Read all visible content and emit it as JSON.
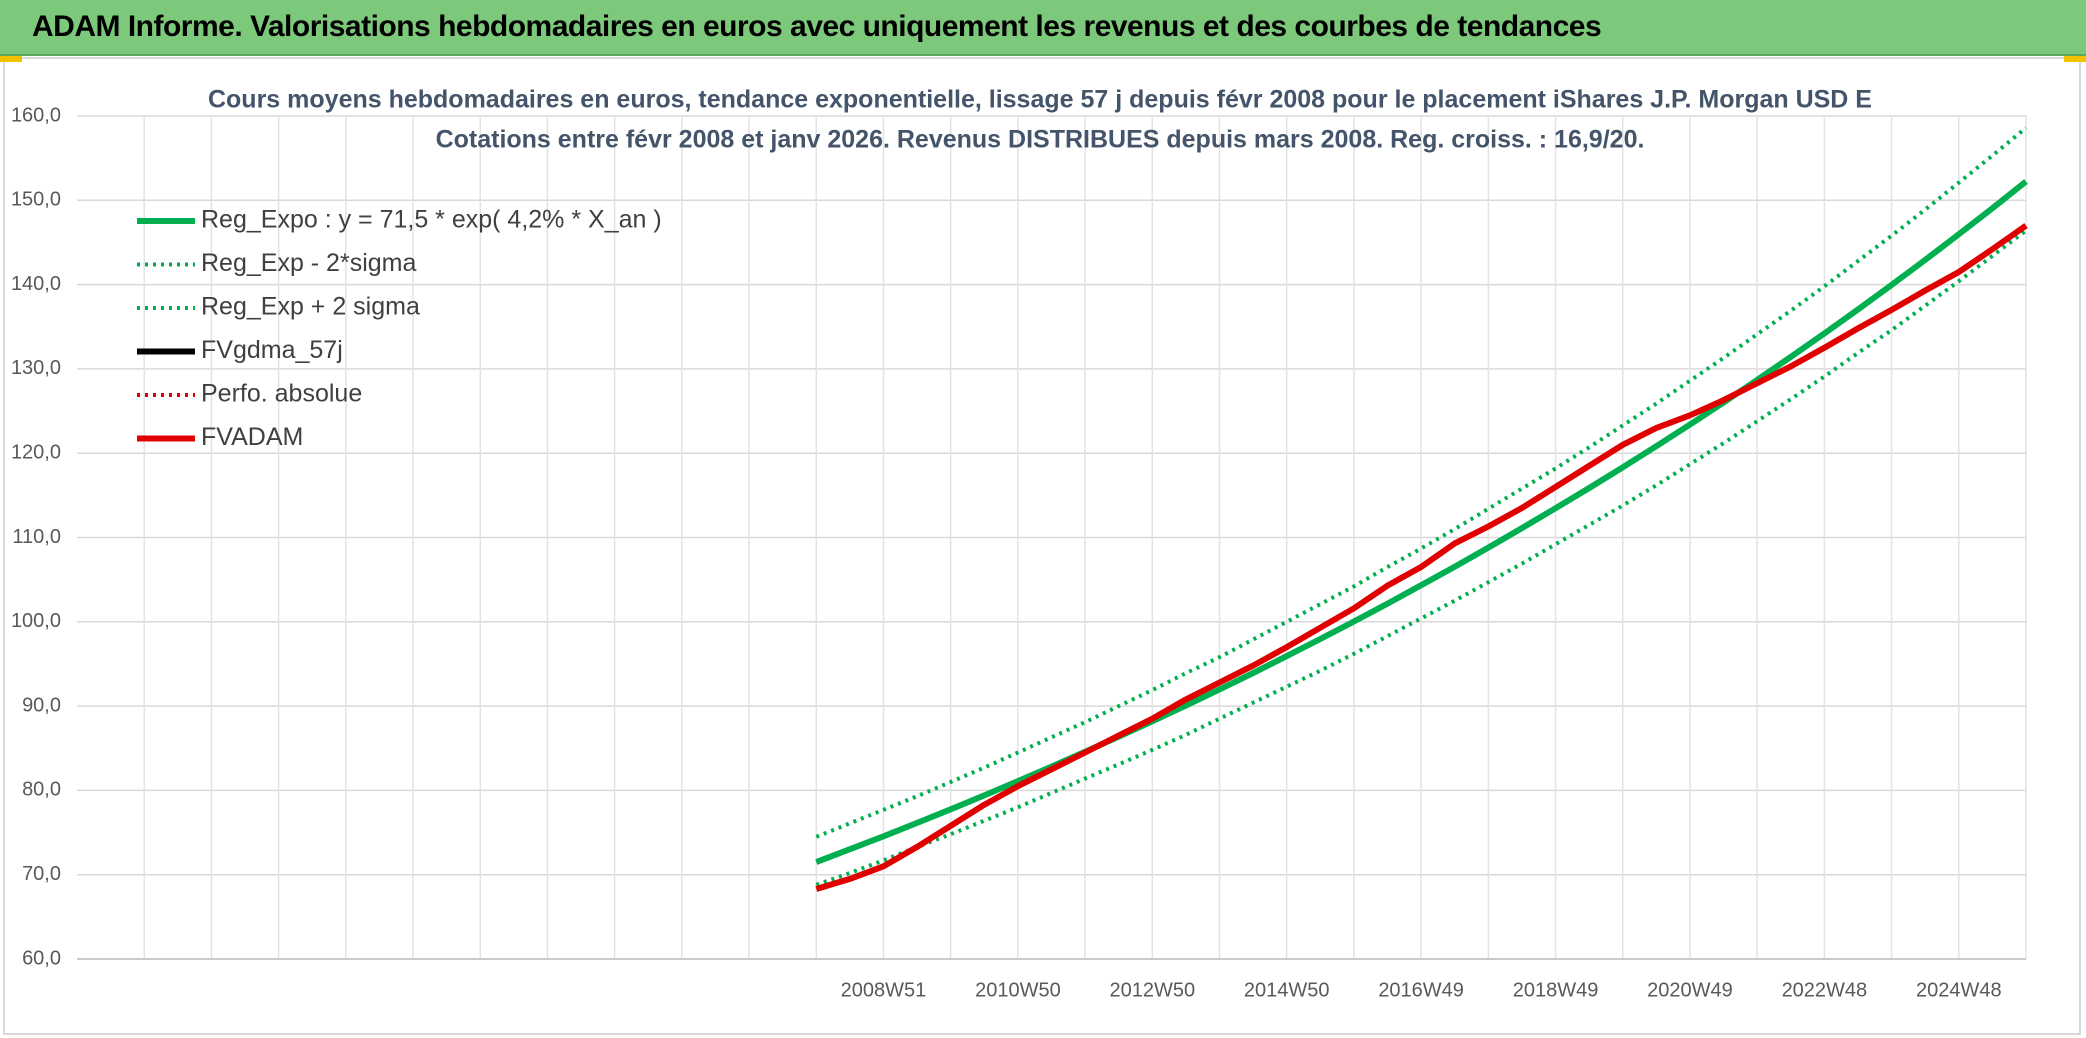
{
  "header": {
    "title": "ADAM Informe. Valorisations hebdomadaires en euros avec uniquement les revenus et des courbes de tendances"
  },
  "chart_data": {
    "type": "line",
    "title": "Cours moyens hebdomadaires en euros, tendance exponentielle, lissage 57 j depuis févr 2008 pour le placement iShares J.P. Morgan USD E",
    "subtitle": "Cotations entre févr 2008 et janv 2026. Revenus DISTRIBUES depuis mars 2008. Reg. croiss. : 16,9/20.",
    "categories": [
      null,
      null,
      null,
      null,
      null,
      null,
      null,
      null,
      null,
      null,
      null,
      null,
      null,
      null,
      null,
      null,
      null,
      null,
      null,
      null,
      null,
      null,
      null,
      null,
      "2008W51",
      null,
      null,
      null,
      "2010W50",
      null,
      null,
      null,
      "2012W50",
      null,
      null,
      null,
      "2014W50",
      null,
      null,
      null,
      "2016W49",
      null,
      null,
      null,
      "2018W49",
      null,
      null,
      null,
      "2020W49",
      null,
      null,
      null,
      "2022W48",
      null,
      null,
      null,
      "2024W48",
      null,
      null
    ],
    "ylim": [
      60,
      160
    ],
    "yticks": [
      {
        "value": 60,
        "label": "60,0"
      },
      {
        "value": 70,
        "label": "70,0"
      },
      {
        "value": 80,
        "label": "80,0"
      },
      {
        "value": 90,
        "label": "90,0"
      },
      {
        "value": 100,
        "label": "100,0"
      },
      {
        "value": 110,
        "label": "110,0"
      },
      {
        "value": 120,
        "label": "120,0"
      },
      {
        "value": 130,
        "label": "130,0"
      },
      {
        "value": 140,
        "label": "140,0"
      },
      {
        "value": 150,
        "label": "150,0"
      },
      {
        "value": 160,
        "label": "160,0"
      }
    ],
    "grid": true,
    "legend": "top-left",
    "series": [
      {
        "name": "Reg_Expo : y = 71,5 * exp( 4,2% *  X_an )",
        "color": "#00b050",
        "style": "solid",
        "values": [
          null,
          null,
          null,
          null,
          null,
          null,
          null,
          null,
          null,
          null,
          null,
          null,
          null,
          null,
          null,
          null,
          null,
          null,
          null,
          null,
          null,
          null,
          71.5,
          73.02,
          74.56,
          76.15,
          77.76,
          79.41,
          81.1,
          82.82,
          84.58,
          86.37,
          88.2,
          90.07,
          91.98,
          93.93,
          95.93,
          97.96,
          100.04,
          102.16,
          104.33,
          106.54,
          108.8,
          111.11,
          113.47,
          115.87,
          118.33,
          120.84,
          123.4,
          126.02,
          128.69,
          131.42,
          134.21,
          137.06,
          139.96,
          142.93,
          145.97,
          149.06,
          152.23
        ]
      },
      {
        "name": "Reg_Exp - 2*sigma",
        "color": "#00b050",
        "style": "dotted",
        "values": [
          null,
          null,
          null,
          null,
          null,
          null,
          null,
          null,
          null,
          null,
          null,
          null,
          null,
          null,
          null,
          null,
          null,
          null,
          null,
          null,
          null,
          null,
          68.8,
          70.2,
          71.7,
          73.3,
          74.8,
          76.4,
          78.0,
          79.7,
          81.4,
          83.1,
          84.8,
          86.6,
          88.5,
          90.4,
          92.3,
          94.2,
          96.2,
          98.3,
          100.4,
          102.5,
          104.7,
          106.9,
          109.2,
          111.5,
          113.8,
          116.2,
          118.7,
          121.2,
          123.8,
          126.4,
          129.1,
          131.9,
          134.6,
          137.5,
          140.4,
          143.4,
          146.4
        ]
      },
      {
        "name": "Reg_Exp + 2 sigma",
        "color": "#00b050",
        "style": "dotted",
        "values": [
          null,
          null,
          null,
          null,
          null,
          null,
          null,
          null,
          null,
          null,
          null,
          null,
          null,
          null,
          null,
          null,
          null,
          null,
          null,
          null,
          null,
          null,
          74.5,
          76.1,
          77.7,
          79.3,
          81.0,
          82.7,
          84.5,
          86.3,
          88.1,
          90.0,
          91.9,
          93.9,
          95.8,
          97.9,
          100.0,
          102.1,
          104.2,
          106.5,
          108.7,
          111.0,
          113.4,
          115.8,
          118.2,
          120.7,
          123.3,
          125.9,
          128.6,
          131.3,
          134.1,
          136.9,
          139.8,
          142.8,
          145.8,
          148.9,
          152.1,
          155.3,
          158.6
        ]
      },
      {
        "name": "FVgdma_57j",
        "color": "#000000",
        "style": "solid",
        "values": [
          null,
          null,
          null,
          null,
          null,
          null,
          null,
          null,
          null,
          null,
          null,
          null,
          null,
          null,
          null,
          null,
          null,
          null,
          null,
          null,
          null,
          null,
          null,
          null,
          null,
          null,
          null,
          null,
          null,
          null,
          null,
          null,
          null,
          null,
          null,
          null,
          null,
          null,
          null,
          null,
          null,
          null,
          null,
          null,
          null,
          null,
          null,
          null,
          null,
          null,
          null,
          null,
          null,
          null,
          null,
          null,
          null,
          null,
          null
        ]
      },
      {
        "name": "Perfo. absolue",
        "color": "#e00000",
        "style": "dotted",
        "values": [
          null,
          null,
          null,
          null,
          null,
          null,
          null,
          null,
          null,
          null,
          null,
          null,
          null,
          null,
          null,
          null,
          null,
          null,
          null,
          null,
          null,
          null,
          null,
          null,
          null,
          null,
          null,
          null,
          null,
          null,
          null,
          null,
          null,
          null,
          null,
          null,
          null,
          null,
          null,
          null,
          null,
          null,
          null,
          null,
          null,
          null,
          null,
          null,
          null,
          null,
          null,
          null,
          null,
          null,
          null,
          null,
          null,
          null,
          null
        ]
      },
      {
        "name": "FVADAM",
        "color": "#e00000",
        "style": "solid",
        "values": [
          null,
          null,
          null,
          null,
          null,
          null,
          null,
          null,
          null,
          null,
          null,
          null,
          null,
          null,
          null,
          null,
          null,
          null,
          null,
          null,
          null,
          null,
          68.3,
          69.5,
          71.0,
          73.3,
          75.8,
          78.3,
          80.5,
          82.5,
          84.5,
          86.5,
          88.5,
          90.8,
          92.8,
          94.8,
          97.0,
          99.3,
          101.6,
          104.3,
          106.5,
          109.3,
          111.3,
          113.5,
          116.0,
          118.5,
          121.0,
          123.0,
          124.5,
          126.3,
          128.3,
          130.3,
          132.5,
          134.8,
          137.0,
          139.3,
          141.5,
          144.2,
          147.0
        ]
      }
    ]
  }
}
